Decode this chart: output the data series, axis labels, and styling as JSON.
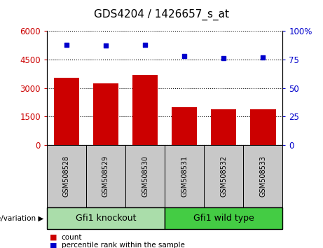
{
  "title": "GDS4204 / 1426657_s_at",
  "samples": [
    "GSM508528",
    "GSM508529",
    "GSM508530",
    "GSM508531",
    "GSM508532",
    "GSM508533"
  ],
  "counts": [
    3550,
    3230,
    3700,
    2000,
    1870,
    1870
  ],
  "percentiles": [
    88,
    87,
    88,
    78,
    76,
    77
  ],
  "bar_color": "#cc0000",
  "dot_color": "#0000cc",
  "left_ylim": [
    0,
    6000
  ],
  "right_ylim": [
    0,
    100
  ],
  "left_yticks": [
    0,
    1500,
    3000,
    4500,
    6000
  ],
  "right_yticks": [
    0,
    25,
    50,
    75,
    100
  ],
  "left_yticklabels": [
    "0",
    "1500",
    "3000",
    "4500",
    "6000"
  ],
  "right_yticklabels": [
    "0",
    "25",
    "50",
    "75",
    "100%"
  ],
  "groups": [
    {
      "label": "Gfi1 knockout",
      "indices": [
        0,
        1,
        2
      ],
      "color": "#aaddaa"
    },
    {
      "label": "Gfi1 wild type",
      "indices": [
        3,
        4,
        5
      ],
      "color": "#44cc44"
    }
  ],
  "group_label_prefix": "genotype/variation ▶",
  "legend_count_label": "count",
  "legend_percentile_label": "percentile rank within the sample",
  "tick_label_area_color": "#c8c8c8",
  "bar_width": 0.65
}
